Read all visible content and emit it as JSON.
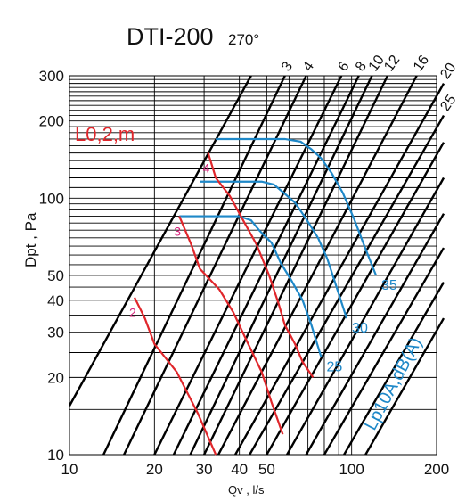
{
  "title": "DTI-200",
  "subtitle": "270°",
  "chart_data": {
    "type": "line",
    "xlabel": "Qv , l/s",
    "ylabel": "Dpt , Pa",
    "xscale": "log",
    "yscale": "log",
    "xlim": [
      10,
      200
    ],
    "ylim": [
      10,
      300
    ],
    "x_ticks": [
      10,
      20,
      30,
      40,
      50,
      100,
      200
    ],
    "y_ticks": [
      10,
      20,
      30,
      40,
      50,
      100,
      200,
      300
    ],
    "grid": true,
    "throw_label": "L0,2,m",
    "sound_label": "Lp10A,dB(A)",
    "throw_lines": [
      {
        "label": "2",
        "points": [
          [
            17,
            41
          ],
          [
            18.5,
            34
          ],
          [
            20,
            27
          ],
          [
            24,
            21
          ],
          [
            28.5,
            14.5
          ],
          [
            33,
            10
          ]
        ]
      },
      {
        "label": "3",
        "points": [
          [
            24.5,
            85
          ],
          [
            27,
            66
          ],
          [
            29,
            53
          ],
          [
            34,
            44
          ],
          [
            38,
            36
          ],
          [
            43,
            27
          ],
          [
            48,
            21
          ],
          [
            52,
            16
          ],
          [
            57,
            12
          ]
        ]
      },
      {
        "label": "4",
        "points": [
          [
            31,
            150
          ],
          [
            33,
            120
          ],
          [
            37,
            102
          ],
          [
            41,
            83
          ],
          [
            46,
            66
          ],
          [
            51,
            50
          ],
          [
            55,
            39
          ],
          [
            58,
            32
          ],
          [
            63,
            27
          ],
          [
            67,
            23
          ],
          [
            73,
            20
          ]
        ]
      }
    ],
    "fan_curves": [
      {
        "label": "25",
        "points": [
          [
            24.5,
            85
          ],
          [
            40,
            85
          ],
          [
            44,
            82
          ],
          [
            47,
            75
          ],
          [
            52,
            67
          ],
          [
            56,
            56
          ],
          [
            61,
            48
          ],
          [
            67,
            40
          ],
          [
            72,
            32
          ],
          [
            78,
            24
          ]
        ]
      },
      {
        "label": "30",
        "points": [
          [
            29,
            116
          ],
          [
            48,
            116
          ],
          [
            53,
            113
          ],
          [
            58,
            104
          ],
          [
            63,
            96
          ],
          [
            69,
            83
          ],
          [
            76,
            70
          ],
          [
            82,
            58
          ],
          [
            89,
            44
          ],
          [
            96,
            34
          ]
        ]
      },
      {
        "label": "35",
        "points": [
          [
            33,
            170
          ],
          [
            58,
            170
          ],
          [
            66,
            166
          ],
          [
            72,
            155
          ],
          [
            78,
            143
          ],
          [
            85,
            125
          ],
          [
            93,
            105
          ],
          [
            102,
            83
          ],
          [
            111,
            65
          ],
          [
            122,
            50
          ]
        ]
      }
    ],
    "system_lines": [
      {
        "label": "3",
        "points": [
          [
            13.2,
            10
          ],
          [
            58,
            300
          ]
        ]
      },
      {
        "label": "4",
        "points": [
          [
            15.6,
            10
          ],
          [
            69,
            300
          ]
        ]
      },
      {
        "label": "6",
        "points": [
          [
            20,
            10
          ],
          [
            92,
            300
          ]
        ]
      },
      {
        "label": "8",
        "points": [
          [
            23.4,
            10
          ],
          [
            106,
            300
          ]
        ]
      },
      {
        "label": "10",
        "points": [
          [
            26.8,
            10
          ],
          [
            118,
            300
          ]
        ]
      },
      {
        "label": "12",
        "points": [
          [
            30,
            10
          ],
          [
            134,
            300
          ]
        ]
      },
      {
        "label": "16",
        "points": [
          [
            33.7,
            10
          ],
          [
            170,
            300
          ]
        ]
      },
      {
        "label": "20",
        "points": [
          [
            38.7,
            10
          ],
          [
            214,
            280
          ]
        ]
      },
      {
        "label": "25",
        "points": [
          [
            43.5,
            10
          ],
          [
            214,
            210
          ]
        ]
      },
      {
        "label": "",
        "points": [
          [
            50,
            10
          ],
          [
            214,
            165
          ]
        ]
      },
      {
        "label": "",
        "points": [
          [
            59,
            10
          ],
          [
            214,
            120
          ]
        ]
      },
      {
        "label": "",
        "points": [
          [
            69,
            10
          ],
          [
            214,
            87
          ]
        ]
      },
      {
        "label": "",
        "points": [
          [
            80,
            10
          ],
          [
            214,
            64
          ]
        ]
      },
      {
        "label": "",
        "points": [
          [
            94,
            10
          ],
          [
            214,
            47
          ]
        ]
      },
      {
        "label": "",
        "points": [
          [
            112,
            10
          ],
          [
            214,
            34
          ]
        ]
      },
      {
        "label": "",
        "points": [
          [
            9.6,
            15.5
          ],
          [
            44,
            300
          ]
        ]
      }
    ]
  }
}
